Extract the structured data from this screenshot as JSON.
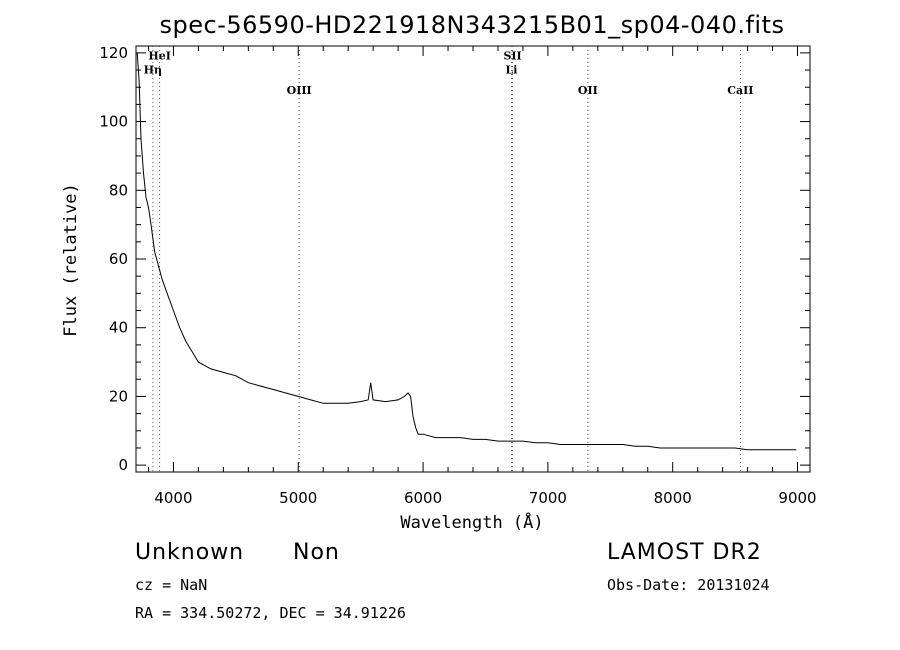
{
  "chart_data": {
    "type": "line",
    "title": "spec-56590-HD221918N343215B01_sp04-040.fits",
    "xlabel": "Wavelength (Å)",
    "ylabel": "Flux (relative)",
    "xlim": [
      3700,
      9100
    ],
    "ylim": [
      -2,
      122
    ],
    "x_ticks": [
      4000,
      5000,
      6000,
      7000,
      8000,
      9000
    ],
    "y_ticks": [
      0,
      20,
      40,
      60,
      80,
      100,
      120
    ],
    "grid": false,
    "series": [
      {
        "color": "#000000",
        "x": [
          3710,
          3725,
          3740,
          3760,
          3780,
          3800,
          3820,
          3850,
          3880,
          3910,
          3950,
          4000,
          4050,
          4100,
          4150,
          4200,
          4300,
          4400,
          4500,
          4600,
          4700,
          4800,
          4900,
          5000,
          5100,
          5200,
          5300,
          5400,
          5500,
          5560,
          5580,
          5600,
          5700,
          5800,
          5850,
          5880,
          5900,
          5920,
          5940,
          5960,
          6000,
          6100,
          6200,
          6300,
          6400,
          6500,
          6600,
          6700,
          6800,
          6900,
          7000,
          7100,
          7200,
          7300,
          7400,
          7500,
          7600,
          7700,
          7800,
          7900,
          8000,
          8100,
          8200,
          8300,
          8400,
          8500,
          8600,
          8700,
          8800,
          8900,
          8990
        ],
        "y": [
          120,
          112,
          95,
          85,
          78,
          75,
          70,
          62,
          58,
          54,
          50,
          45,
          40,
          36,
          33,
          30,
          28,
          27,
          26,
          24,
          23,
          22,
          21,
          20,
          19,
          18,
          18,
          18,
          18.5,
          19,
          24,
          19,
          18.5,
          19,
          20,
          21,
          20,
          14,
          11,
          9,
          9,
          8,
          8,
          8,
          7.5,
          7.5,
          7,
          7,
          7,
          6.5,
          6.5,
          6,
          6,
          6,
          6,
          6,
          6,
          5.5,
          5.5,
          5,
          5,
          5,
          5,
          5,
          5,
          5,
          4.5,
          4.5,
          4.5,
          4.5,
          4.5
        ]
      }
    ],
    "lines": [
      {
        "label": "HeI",
        "x": 3889,
        "color": "#555555",
        "label_y": 118
      },
      {
        "label": "Hη",
        "x": 3835,
        "color": "#555555",
        "label_y": 114
      },
      {
        "label": "OIII",
        "x": 5007,
        "color": "#555555",
        "label_y": 108
      },
      {
        "label": "Li",
        "x": 6708,
        "color": "#dd2222",
        "label_y": 114
      },
      {
        "label": "OII",
        "x": 7320,
        "color": "#555555",
        "label_y": 108
      },
      {
        "label": "SII",
        "x": 6717,
        "color": "#555555",
        "label_y": 118
      },
      {
        "label": "CaII",
        "x": 8542,
        "color": "#555555",
        "label_y": 108
      }
    ]
  },
  "info": {
    "classification": "Unknown",
    "subclass": "Non",
    "cz": "cz = NaN",
    "radec": "RA = 334.50272, DEC =  34.91226",
    "survey": "LAMOST DR2",
    "obsdate": "Obs-Date: 20131024"
  }
}
